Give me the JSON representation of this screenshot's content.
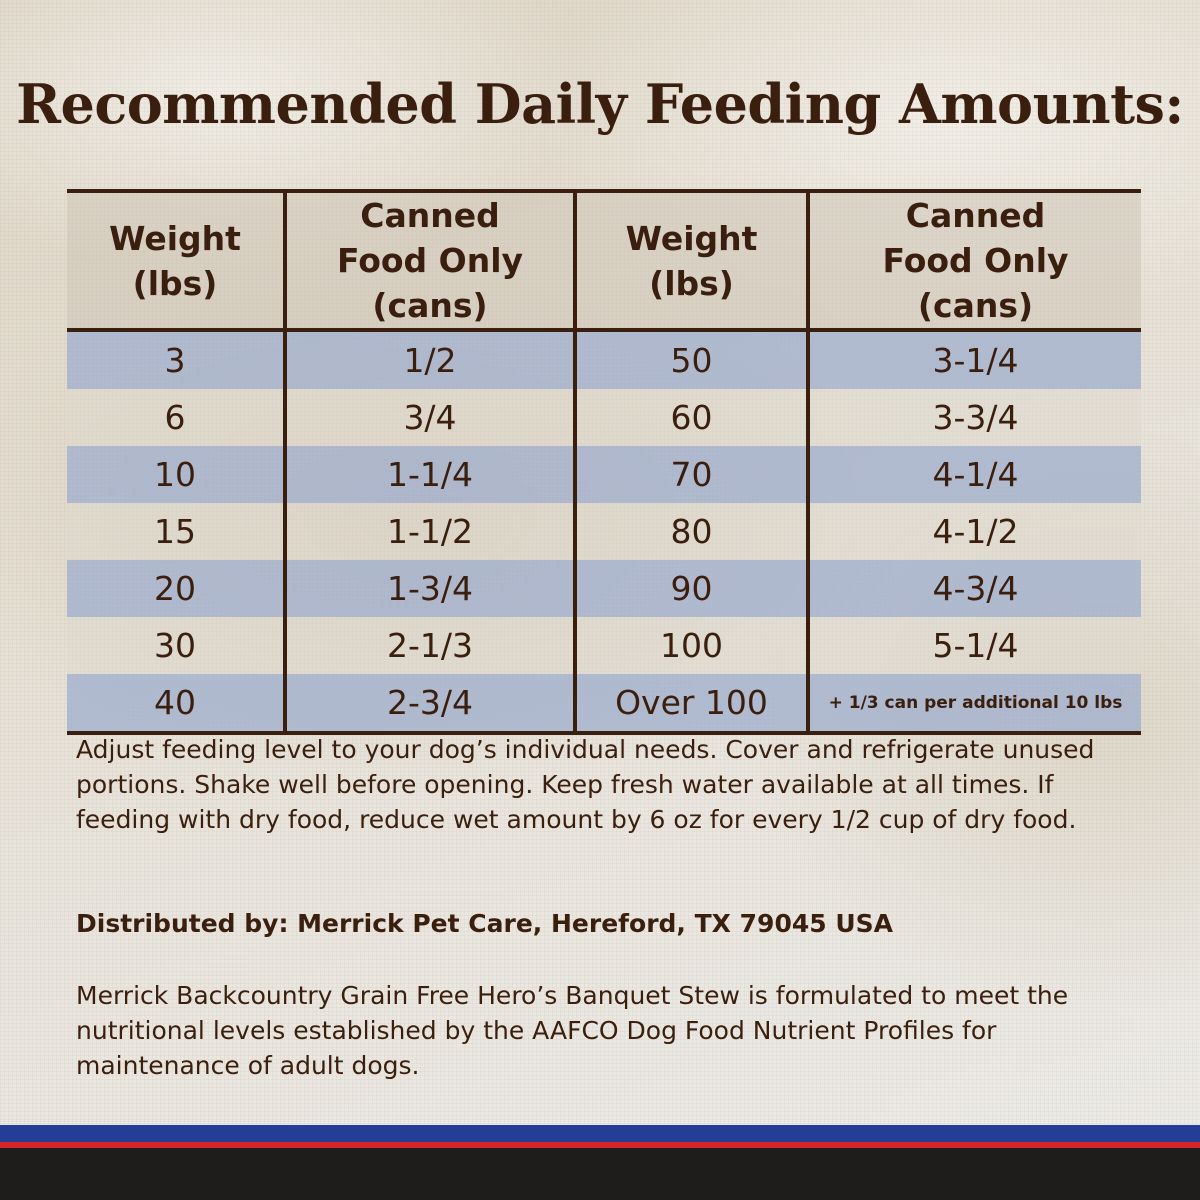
{
  "title": "Recommended Daily Feeding Amounts:",
  "table": {
    "headers": [
      "Weight (lbs)",
      "Canned Food Only (cans)",
      "Weight (lbs)",
      "Canned Food Only (cans)"
    ],
    "rows": [
      [
        "3",
        "1/2",
        "50",
        "3-1/4"
      ],
      [
        "6",
        "3/4",
        "60",
        "3-3/4"
      ],
      [
        "10",
        "1-1/4",
        "70",
        "4-1/4"
      ],
      [
        "15",
        "1-1/2",
        "80",
        "4-1/2"
      ],
      [
        "20",
        "1-3/4",
        "90",
        "4-3/4"
      ],
      [
        "30",
        "2-1/3",
        "100",
        "5-1/4"
      ],
      [
        "40",
        "2-3/4",
        "Over 100",
        "+ 1/3 can per additional 10 lbs"
      ]
    ]
  },
  "instructions": "Adjust feeding level to your dog’s individual needs. Cover and refrigerate unused portions. Shake well before opening. Keep fresh water available at all times. If feeding with dry food, reduce wet amount by 6 oz for every 1/2 cup of dry food.",
  "distributor": "Distributed by: Merrick Pet Care, Hereford, TX 79045 USA",
  "statement": "Merrick Backcountry Grain Free Hero’s Banquet Stew is formulated to meet the nutritional levels established by the AAFCO Dog Food Nutrient Profiles for maintenance of adult dogs.",
  "colors": {
    "text_brown": "#3b1f0e",
    "row_blue": "#a1afcd",
    "stripe_blue": "#243d96",
    "stripe_red": "#d6252a",
    "stripe_black": "#1e1d1b"
  }
}
